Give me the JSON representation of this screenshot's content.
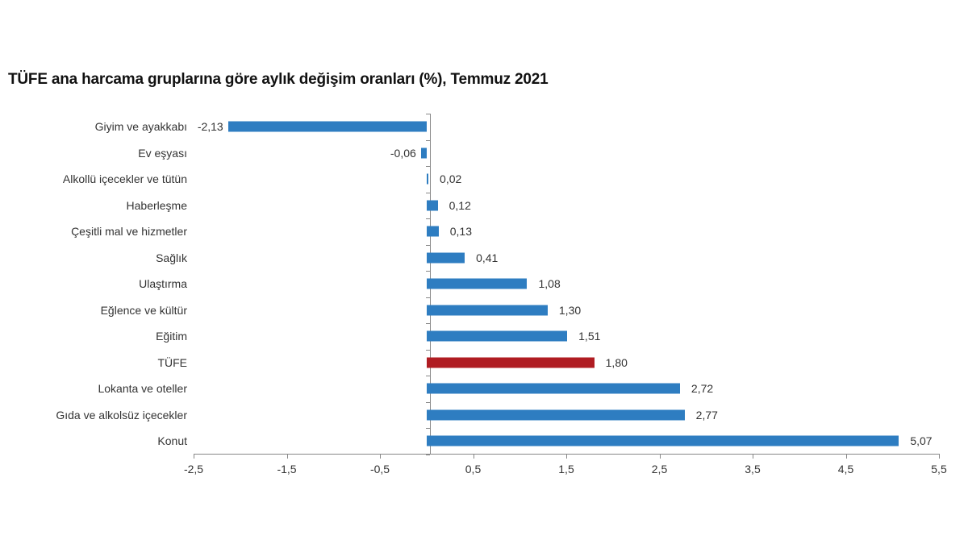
{
  "title": "TÜFE ana harcama gruplarına göre aylık değişim oranları (%), Temmuz 2021",
  "colors": {
    "bar": "#2e7dc1",
    "highlight": "#b01c22",
    "axis": "#888888"
  },
  "chart_data": {
    "type": "bar",
    "orientation": "horizontal",
    "title": "TÜFE ana harcama gruplarına göre aylık değişim oranları (%), Temmuz 2021",
    "xlabel": "",
    "ylabel": "",
    "xlim": [
      -2.5,
      5.5
    ],
    "xticks": [
      "-2,5",
      "-1,5",
      "-0,5",
      "0,5",
      "1,5",
      "2,5",
      "3,5",
      "4,5",
      "5,5"
    ],
    "xtick_values": [
      -2.5,
      -1.5,
      -0.5,
      0.5,
      1.5,
      2.5,
      3.5,
      4.5,
      5.5
    ],
    "grid": false,
    "legend": null,
    "categories": [
      "Giyim ve ayakkabı",
      "Ev eşyası",
      "Alkollü içecekler ve tütün",
      "Haberleşme",
      "Çeşitli mal ve hizmetler",
      "Sağlık",
      "Ulaştırma",
      "Eğlence ve kültür",
      "Eğitim",
      "TÜFE",
      "Lokanta ve oteller",
      "Gıda ve alkolsüz içecekler",
      "Konut"
    ],
    "values": [
      -2.13,
      -0.06,
      0.02,
      0.12,
      0.13,
      0.41,
      1.08,
      1.3,
      1.51,
      1.8,
      2.72,
      2.77,
      5.07
    ],
    "value_labels": [
      "-2,13",
      "-0,06",
      "0,02",
      "0,12",
      "0,13",
      "0,41",
      "1,08",
      "1,30",
      "1,51",
      "1,80",
      "2,72",
      "2,77",
      "5,07"
    ],
    "highlight_index": 9
  }
}
